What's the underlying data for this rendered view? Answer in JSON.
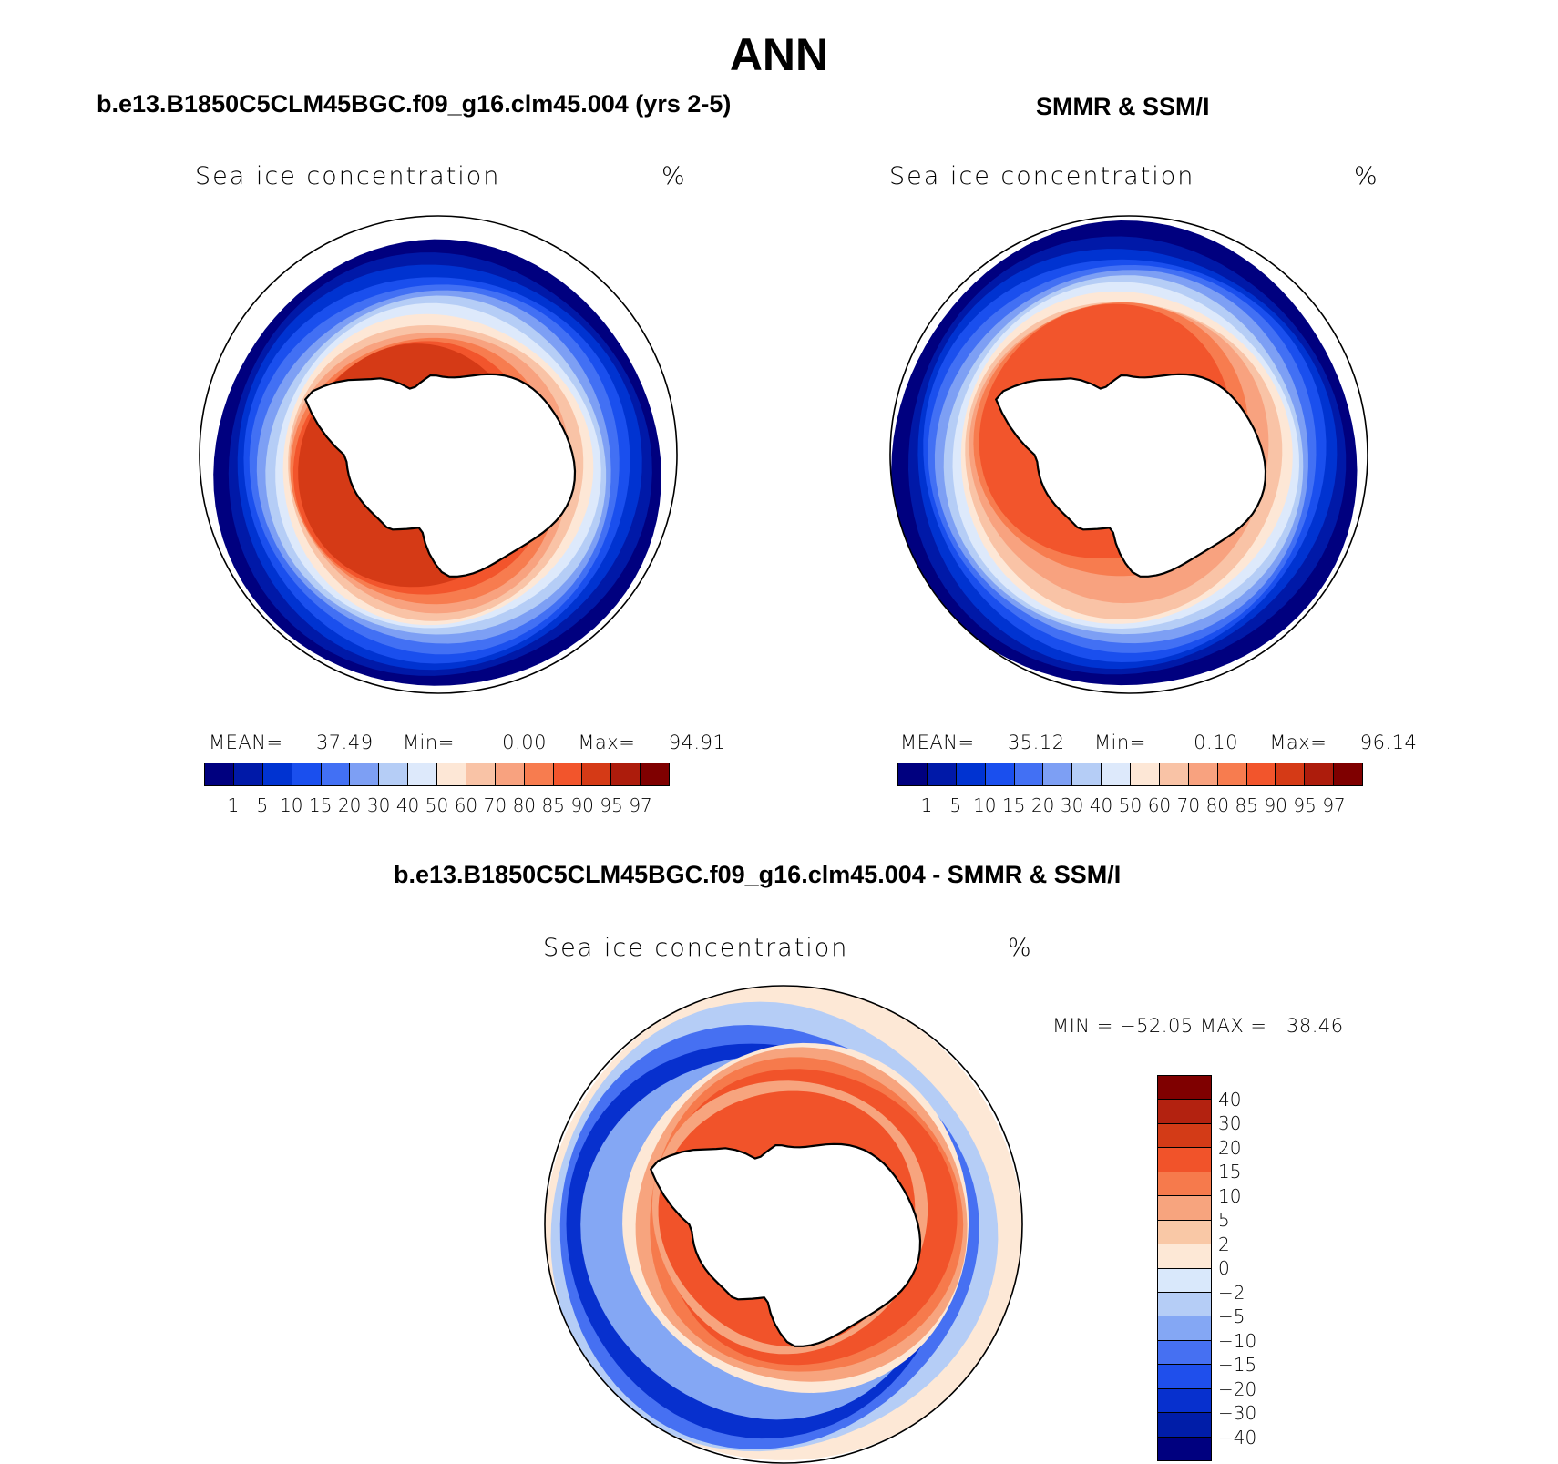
{
  "figure_title": "ANN",
  "palette_abs": [
    "#00007f",
    "#0019a8",
    "#0033d1",
    "#1a4fee",
    "#4270f4",
    "#7d9ff4",
    "#b5cdf6",
    "#dde9fb",
    "#fde7d6",
    "#f9c3a6",
    "#f8a27f",
    "#f77c4f",
    "#f2552c",
    "#d53a16",
    "#ad1c0c",
    "#7f0000"
  ],
  "palette_diff": [
    "#7f0000",
    "#b32210",
    "#d33b17",
    "#f1532a",
    "#f67a4c",
    "#f7a47e",
    "#f9c8a6",
    "#fde8d6",
    "#d9e8fb",
    "#b5cdf6",
    "#84a7f4",
    "#4670f2",
    "#1f4fec",
    "#0730ce",
    "#001da8",
    "#00007f"
  ],
  "panels": [
    {
      "title": "b.e13.B1850C5CLM45BGC.f09_g16.clm45.004 (yrs 2-5)",
      "variable": "Sea ice concentration",
      "units": "%",
      "stats": {
        "mean_label": "MEAN=",
        "mean": "37.49",
        "min_label": "Min=",
        "min": "0.00",
        "max_label": "Max=",
        "max": "94.91"
      },
      "colorbar_ticks": [
        "1",
        "5",
        "10",
        "15",
        "20",
        "30",
        "40",
        "50",
        "60",
        "70",
        "80",
        "85",
        "90",
        "95",
        "97"
      ],
      "map_style": "model"
    },
    {
      "title": "SMMR & SSM/I",
      "variable": "Sea ice concentration",
      "units": "%",
      "stats": {
        "mean_label": "MEAN=",
        "mean": "35.12",
        "min_label": "Min=",
        "min": "0.10",
        "max_label": "Max=",
        "max": "96.14"
      },
      "colorbar_ticks": [
        "1",
        "5",
        "10",
        "15",
        "20",
        "30",
        "40",
        "50",
        "60",
        "70",
        "80",
        "85",
        "90",
        "95",
        "97"
      ],
      "map_style": "obs"
    }
  ],
  "diff_panel": {
    "title": "b.e13.B1850C5CLM45BGC.f09_g16.clm45.004 - SMMR & SSM/I",
    "variable": "Sea ice concentration",
    "units": "%",
    "stats_text": "MIN = −52.05 MAX =   38.46",
    "colorbar_ticks": [
      "40",
      "30",
      "20",
      "15",
      "10",
      "5",
      "2",
      "0",
      "−2",
      "−5",
      "−10",
      "−15",
      "−20",
      "−30",
      "−40"
    ]
  },
  "chart_data": [
    {
      "type": "heatmap",
      "title": "b.e13.B1850C5CLM45BGC.f09_g16.clm45.004 (yrs 2-5)",
      "variable": "Sea ice concentration",
      "units": "%",
      "projection": "south polar stereographic",
      "levels": [
        1,
        5,
        10,
        15,
        20,
        30,
        40,
        50,
        60,
        70,
        80,
        85,
        90,
        95,
        97
      ],
      "mean": 37.49,
      "min": 0.0,
      "max": 94.91
    },
    {
      "type": "heatmap",
      "title": "SMMR & SSM/I",
      "variable": "Sea ice concentration",
      "units": "%",
      "projection": "south polar stereographic",
      "levels": [
        1,
        5,
        10,
        15,
        20,
        30,
        40,
        50,
        60,
        70,
        80,
        85,
        90,
        95,
        97
      ],
      "mean": 35.12,
      "min": 0.1,
      "max": 96.14
    },
    {
      "type": "heatmap",
      "title": "b.e13.B1850C5CLM45BGC.f09_g16.clm45.004 - SMMR & SSM/I",
      "variable": "Sea ice concentration",
      "units": "%",
      "projection": "south polar stereographic",
      "levels": [
        -40,
        -30,
        -20,
        -15,
        -10,
        -5,
        -2,
        0,
        2,
        5,
        10,
        15,
        20,
        30,
        40
      ],
      "min": -52.05,
      "max": 38.46
    }
  ]
}
